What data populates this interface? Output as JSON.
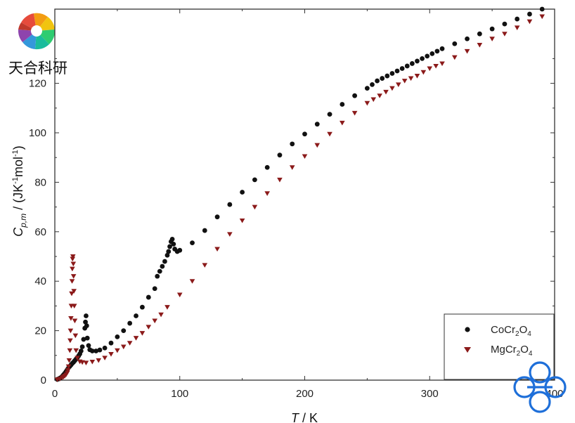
{
  "brand": {
    "text": "天合科研"
  },
  "chart_data": {
    "type": "scatter",
    "xlabel": {
      "main": "T",
      "unit": "K"
    },
    "ylabel": {
      "main": "C",
      "sub": "p,m",
      "unit": "JK",
      "sup": "-1",
      "unit2": "mol",
      "sup2": "-1"
    },
    "xlim": [
      0,
      400
    ],
    "ylim": [
      0,
      150
    ],
    "xticks": [
      0,
      100,
      200,
      300,
      400
    ],
    "yticks": [
      0,
      20,
      40,
      60,
      80,
      100,
      120
    ],
    "xtick_labels": [
      "0",
      "100",
      "200",
      "300",
      "400"
    ],
    "ytick_labels": [
      "0",
      "20",
      "40",
      "60",
      "80",
      "100",
      "120"
    ],
    "legend_position": "bottom-right",
    "series": [
      {
        "name": "CoCr2O4",
        "legend": {
          "base": "CoCr",
          "s1": "2",
          "mid": "O",
          "s2": "4"
        },
        "color": "#111111",
        "marker": "circle",
        "points": [
          [
            2,
            0.3
          ],
          [
            3,
            0.5
          ],
          [
            4,
            0.8
          ],
          [
            5,
            1.1
          ],
          [
            6,
            1.6
          ],
          [
            7,
            2.2
          ],
          [
            8,
            2.8
          ],
          [
            9,
            3.5
          ],
          [
            10,
            4.3
          ],
          [
            11,
            5
          ],
          [
            12,
            5.6
          ],
          [
            13,
            6.2
          ],
          [
            14,
            6.8
          ],
          [
            15,
            7.3
          ],
          [
            16,
            7.9
          ],
          [
            17,
            8.5
          ],
          [
            18,
            9.1
          ],
          [
            19,
            9.8
          ],
          [
            20,
            10.6
          ],
          [
            21,
            11.8
          ],
          [
            22,
            13.5
          ],
          [
            23,
            16.5
          ],
          [
            24,
            21
          ],
          [
            24.5,
            23.5
          ],
          [
            25,
            26
          ],
          [
            25.5,
            22
          ],
          [
            26,
            17
          ],
          [
            27,
            14
          ],
          [
            28,
            12.3
          ],
          [
            30,
            11.8
          ],
          [
            33,
            11.8
          ],
          [
            36,
            12.2
          ],
          [
            40,
            13
          ],
          [
            45,
            15
          ],
          [
            50,
            17.5
          ],
          [
            55,
            20
          ],
          [
            60,
            23
          ],
          [
            65,
            26
          ],
          [
            70,
            29.5
          ],
          [
            75,
            33.5
          ],
          [
            80,
            37
          ],
          [
            82,
            42
          ],
          [
            84,
            44
          ],
          [
            86,
            46
          ],
          [
            88,
            48
          ],
          [
            90,
            50.5
          ],
          [
            91,
            52
          ],
          [
            92,
            54
          ],
          [
            93,
            56
          ],
          [
            94,
            57
          ],
          [
            95,
            55
          ],
          [
            96,
            53
          ],
          [
            98,
            52
          ],
          [
            100,
            52.5
          ],
          [
            110,
            55.5
          ],
          [
            120,
            60.5
          ],
          [
            130,
            66
          ],
          [
            140,
            71
          ],
          [
            150,
            76
          ],
          [
            160,
            81
          ],
          [
            170,
            86
          ],
          [
            180,
            91
          ],
          [
            190,
            95.5
          ],
          [
            200,
            99.5
          ],
          [
            210,
            103.5
          ],
          [
            220,
            107.5
          ],
          [
            230,
            111.5
          ],
          [
            240,
            115
          ],
          [
            250,
            118
          ],
          [
            254,
            119.5
          ],
          [
            258,
            121
          ],
          [
            262,
            122
          ],
          [
            266,
            123
          ],
          [
            270,
            124
          ],
          [
            274,
            125
          ],
          [
            278,
            126
          ],
          [
            282,
            127
          ],
          [
            286,
            128
          ],
          [
            290,
            129
          ],
          [
            294,
            130
          ],
          [
            298,
            131
          ],
          [
            302,
            132
          ],
          [
            306,
            133
          ],
          [
            310,
            134
          ],
          [
            320,
            136
          ],
          [
            330,
            138
          ],
          [
            340,
            140
          ],
          [
            350,
            142
          ],
          [
            360,
            144
          ],
          [
            370,
            146
          ],
          [
            380,
            148
          ],
          [
            390,
            150
          ]
        ]
      },
      {
        "name": "MgCr2O4",
        "legend": {
          "base": "MgCr",
          "s1": "2",
          "mid": "O",
          "s2": "4"
        },
        "color": "#8b1a1a",
        "marker": "triangle-down",
        "points": [
          [
            2,
            0.2
          ],
          [
            4,
            0.5
          ],
          [
            6,
            1
          ],
          [
            7,
            1.3
          ],
          [
            8,
            1.7
          ],
          [
            9,
            2.2
          ],
          [
            10,
            3
          ],
          [
            10.5,
            4
          ],
          [
            11,
            5.5
          ],
          [
            11.5,
            8
          ],
          [
            12,
            12
          ],
          [
            12.3,
            16
          ],
          [
            12.6,
            20
          ],
          [
            12.9,
            25
          ],
          [
            13.2,
            30
          ],
          [
            13.5,
            35
          ],
          [
            13.8,
            40
          ],
          [
            14,
            45
          ],
          [
            14.2,
            49
          ],
          [
            14.5,
            50
          ],
          [
            14.8,
            47
          ],
          [
            15,
            42
          ],
          [
            15.3,
            36
          ],
          [
            15.6,
            30
          ],
          [
            16,
            24
          ],
          [
            16.5,
            18
          ],
          [
            17,
            12
          ],
          [
            18,
            9
          ],
          [
            20,
            7.5
          ],
          [
            22,
            7.2
          ],
          [
            25,
            7
          ],
          [
            30,
            7.4
          ],
          [
            35,
            8
          ],
          [
            40,
            9
          ],
          [
            45,
            10.5
          ],
          [
            50,
            12
          ],
          [
            55,
            13.5
          ],
          [
            60,
            15
          ],
          [
            65,
            17
          ],
          [
            70,
            19
          ],
          [
            75,
            21.5
          ],
          [
            80,
            24
          ],
          [
            85,
            26.5
          ],
          [
            90,
            29.5
          ],
          [
            100,
            34.5
          ],
          [
            110,
            40
          ],
          [
            120,
            46.5
          ],
          [
            130,
            53
          ],
          [
            140,
            59
          ],
          [
            150,
            64.5
          ],
          [
            160,
            70
          ],
          [
            170,
            75.5
          ],
          [
            180,
            81
          ],
          [
            190,
            86
          ],
          [
            200,
            90.5
          ],
          [
            210,
            95
          ],
          [
            220,
            99.5
          ],
          [
            230,
            104
          ],
          [
            240,
            108
          ],
          [
            250,
            112
          ],
          [
            255,
            113.5
          ],
          [
            260,
            115
          ],
          [
            265,
            116.5
          ],
          [
            270,
            118
          ],
          [
            275,
            119.5
          ],
          [
            280,
            121
          ],
          [
            285,
            122
          ],
          [
            290,
            123
          ],
          [
            295,
            124.5
          ],
          [
            300,
            126
          ],
          [
            305,
            127
          ],
          [
            310,
            128
          ],
          [
            320,
            130.5
          ],
          [
            330,
            133
          ],
          [
            340,
            135.5
          ],
          [
            350,
            138
          ],
          [
            360,
            140
          ],
          [
            370,
            142.5
          ],
          [
            380,
            145
          ],
          [
            390,
            147
          ]
        ]
      }
    ]
  }
}
